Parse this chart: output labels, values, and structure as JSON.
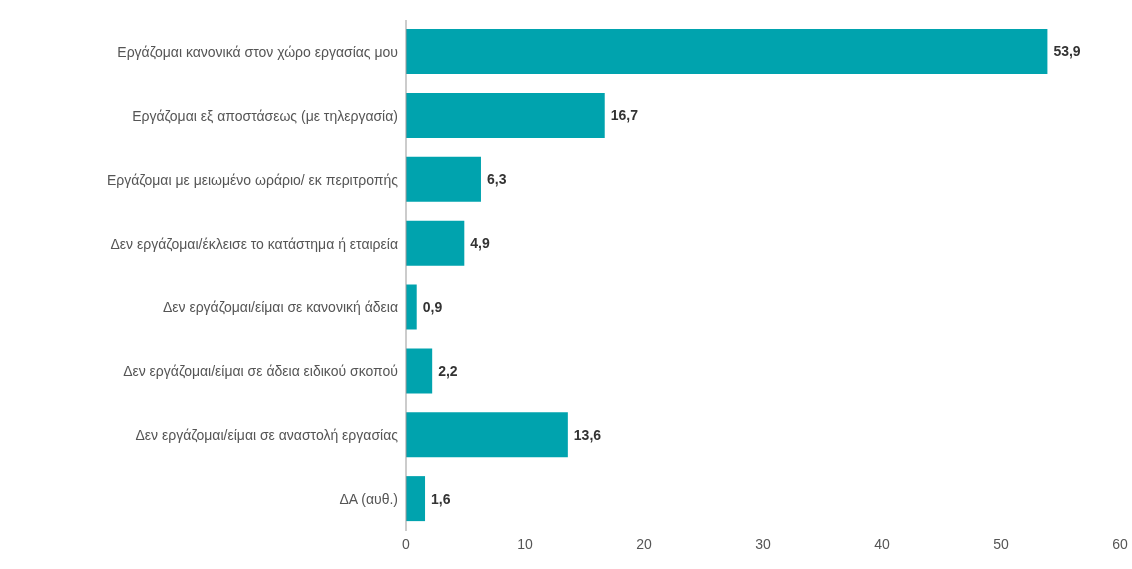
{
  "chart_data": {
    "type": "bar",
    "orientation": "horizontal",
    "categories": [
      "Εργάζομαι κανονικά στον χώρο εργασίας μου",
      "Εργάζομαι εξ αποστάσεως (με τηλεργασία)",
      "Εργάζομαι με μειωμένο ωράριο/ εκ περιτροπής",
      "Δεν εργάζομαι/έκλεισε το κατάστημα ή εταιρεία",
      "Δεν εργάζομαι/είμαι σε κανονική άδεια",
      "Δεν εργάζομαι/είμαι σε άδεια ειδικού σκοπού",
      "Δεν εργάζομαι/είμαι σε αναστολή εργασίας",
      "ΔΑ (αυθ.)"
    ],
    "values": [
      53.9,
      16.7,
      6.3,
      4.9,
      0.9,
      2.2,
      13.6,
      1.6
    ],
    "value_labels": [
      "53,9",
      "16,7",
      "6,3",
      "4,9",
      "0,9",
      "2,2",
      "13,6",
      "1,6"
    ],
    "color": "#00a3ae",
    "xlim": [
      0,
      60
    ],
    "xticks": [
      0,
      10,
      20,
      30,
      40,
      50,
      60
    ],
    "grid": false,
    "legend": false
  }
}
